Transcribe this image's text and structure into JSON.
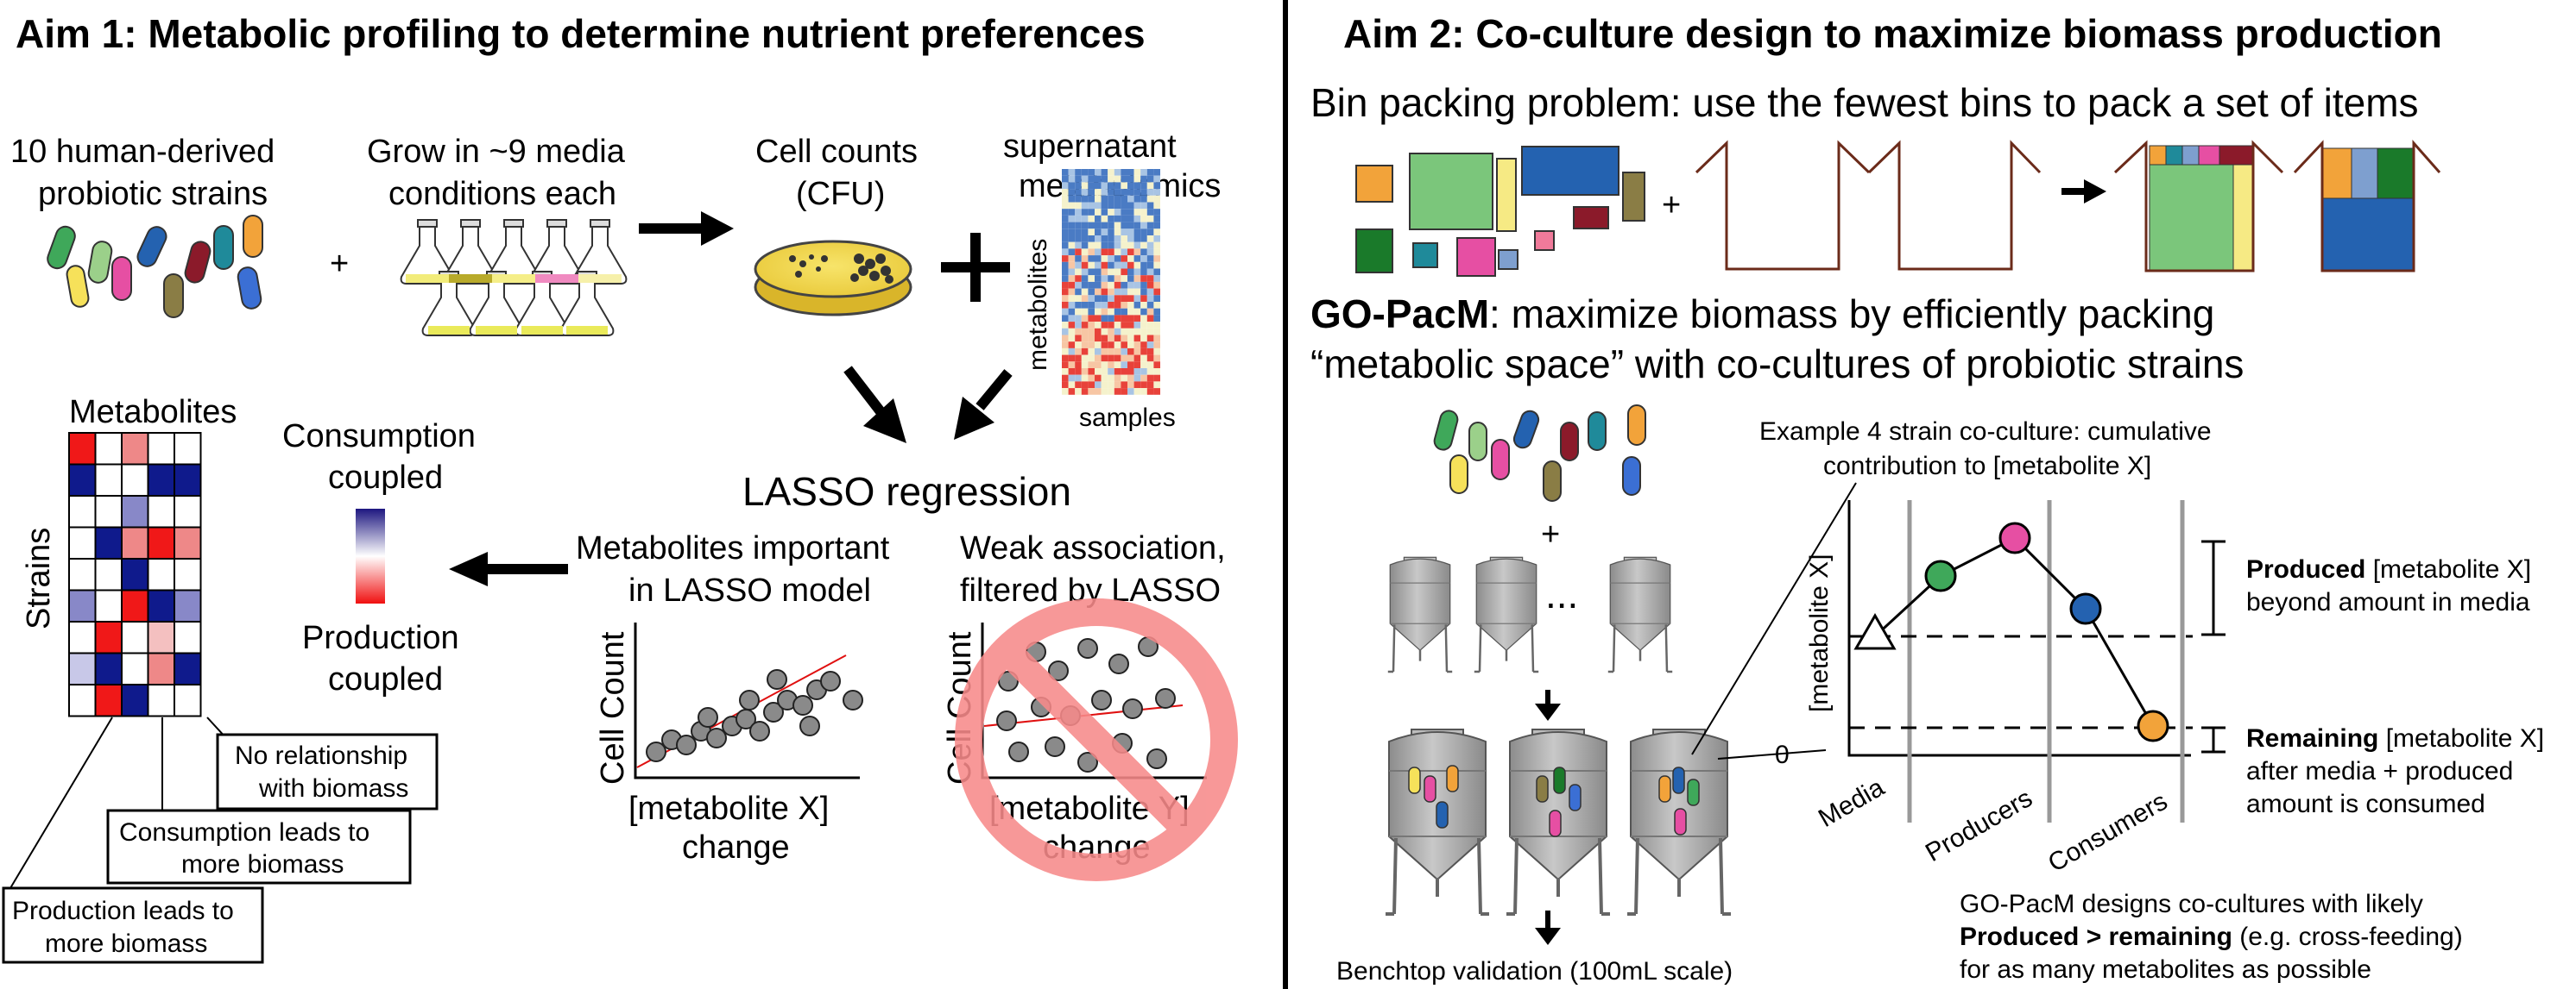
{
  "aim1": {
    "title": "Aim 1: Metabolic profiling to determine nutrient preferences",
    "strains": [
      "10 human-derived",
      "probiotic strains"
    ],
    "plus1": "+",
    "grow": [
      "Grow in ~9 media",
      "conditions each"
    ],
    "cell_counts": [
      "Cell counts",
      "(CFU)"
    ],
    "plus2": "+",
    "supernatant": [
      "supernatant",
      "metabolomics"
    ],
    "axis_metabolites": "metabolites",
    "axis_samples": "samples",
    "lasso": "LASSO regression",
    "important": [
      "Metabolites important",
      "in LASSO model"
    ],
    "weak": [
      "Weak association,",
      "filtered by LASSO"
    ],
    "cell_count_axis": "Cell Count",
    "x_label_a": [
      "[metabolite X]",
      "change"
    ],
    "x_label_b": [
      "[metabolite Y]",
      "change"
    ],
    "heatmap_title": "Metabolites",
    "heatmap_ylabel": "Strains",
    "consumption": [
      "Consumption",
      "coupled"
    ],
    "production": [
      "Production",
      "coupled"
    ],
    "box_no_rel": [
      "No relationship",
      "with biomass"
    ],
    "box_consumption": [
      "Consumption leads to",
      "more biomass"
    ],
    "box_production": [
      "Production leads to",
      "more biomass"
    ]
  },
  "aim2": {
    "title": "Aim 2: Co-culture design to maximize biomass production",
    "bin_packing": "Bin packing problem: use the fewest bins to pack a set of items",
    "plus": "+",
    "gopacm_bold": "GO-PacM",
    "gopacm_rest": ": maximize biomass by efficiently packing",
    "gopacm_line2": "“metabolic space” with co-cultures of probiotic strains",
    "plus_tanks": "+",
    "ellipsis": "...",
    "benchtop": "Benchtop validation (100mL scale)",
    "example": [
      "Example 4 strain co-culture: cumulative",
      "contribution to [metabolite X]"
    ],
    "y_axis": "[metabolite X]",
    "zero": "0",
    "x_categories": [
      "Media",
      "Producers",
      "Consumers"
    ],
    "produced_bold": "Produced",
    "produced_rest": " [metabolite X]",
    "produced_line2": "beyond amount in media",
    "remaining_bold": "Remaining",
    "remaining_rest": " [metabolite X]",
    "remaining_line2": "after media + produced",
    "remaining_line3": "amount is consumed",
    "footer_line1": "GO-PacM designs co-cultures with likely",
    "footer_bold": "Produced > remaining",
    "footer_rest": " (e.g. cross-feeding)",
    "footer_line3": "for as many metabolites as possible"
  },
  "colors": {
    "green": "#3fa85a",
    "pink": "#e64fa3",
    "blue": "#2462b0",
    "orange": "#f2a33a",
    "red_arrow_line": "#e01010",
    "prohibit": "#f78a8a",
    "tank_grey": "#a6a6a6",
    "bin_brown": "#6b2b1a",
    "heat_blue": "#0f1a8c",
    "heat_red": "#f01818"
  }
}
